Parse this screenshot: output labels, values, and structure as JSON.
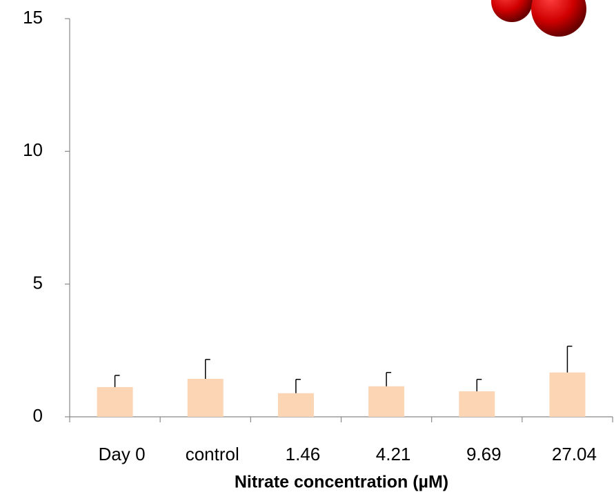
{
  "chart_data": {
    "type": "bar",
    "x_label": "Nitrate concentration (µM)",
    "categories": [
      "Day 0",
      "control",
      "1.46",
      "4.21",
      "9.69",
      "27.04"
    ],
    "values": [
      1.12,
      1.43,
      0.89,
      1.15,
      0.96,
      1.67
    ],
    "errors": [
      0.44,
      0.73,
      0.52,
      0.52,
      0.45,
      0.99
    ],
    "color": "#fcd5b5",
    "ylim": [
      0,
      15
    ],
    "yticks": [
      0,
      5,
      10,
      15
    ]
  }
}
